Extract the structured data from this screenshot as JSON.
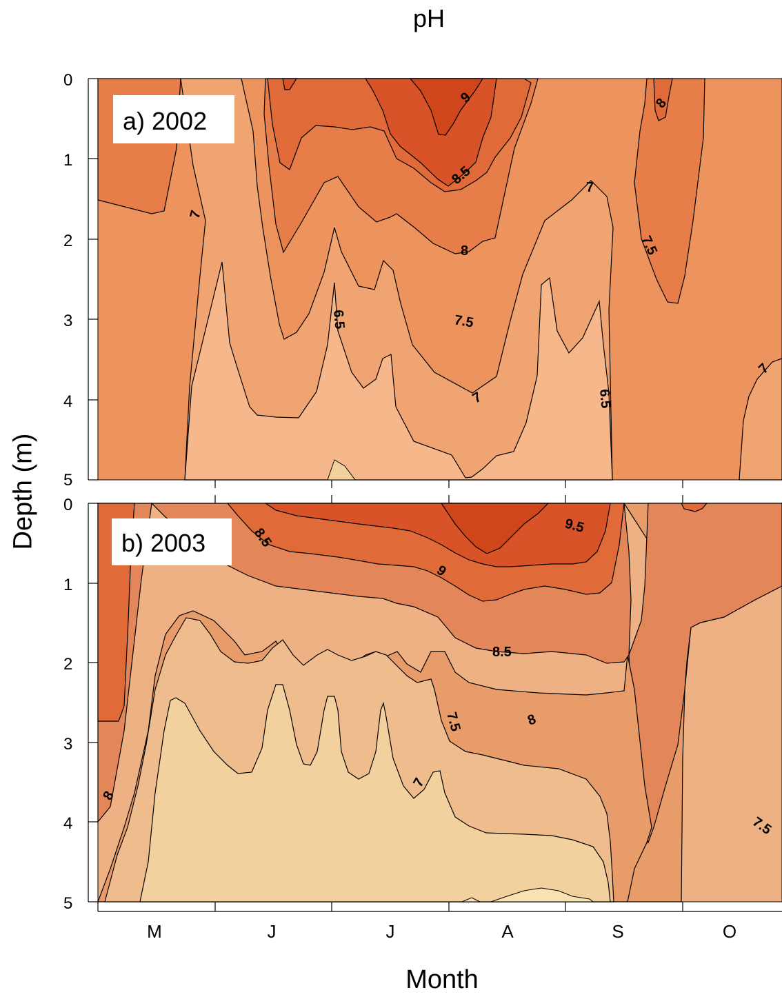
{
  "chart_data": {
    "type": "heatmap",
    "title": "pH",
    "xlabel": "Month",
    "ylabel": "Depth (m)",
    "x_categories": [
      "M",
      "J",
      "J",
      "A",
      "S",
      "O"
    ],
    "y_ticks": [
      0,
      1,
      2,
      3,
      4,
      5
    ],
    "ylim": [
      5,
      0
    ],
    "colors": {
      "6.0": "#f3d19f",
      "6.5": "#f6b88a",
      "7.0": "#f0a472",
      "7.5": "#ec935e",
      "8.0": "#e77e4a",
      "8.5": "#e16a39",
      "9.0": "#d85328",
      "9.5": "#cf461a"
    },
    "panels": [
      {
        "label": "a) 2002",
        "contour_labels": [
          "9",
          "8.5",
          "8",
          "7.5",
          "7",
          "6.5",
          "7",
          "8",
          "7.5",
          "6.5",
          "7"
        ],
        "background_level": "7.5",
        "regions": [
          {
            "level": "8.0",
            "points": [
              [
                0,
                0
              ],
              [
                120,
                0
              ],
              [
                118,
                13.5
              ],
              [
                100,
                15.5
              ],
              [
                0,
                15
              ]
            ]
          },
          {
            "level": "7.0",
            "points": [
              [
                132,
                0
              ],
              [
                225,
                0
              ],
              [
                210,
                20
              ],
              [
                188,
                33
              ],
              [
                178,
                48
              ],
              [
                175,
                60
              ],
              [
                178,
                70
              ],
              [
                185,
                80
              ],
              [
                160,
                100
              ],
              [
                140,
                100
              ],
              [
                150,
                75
              ],
              [
                155,
                50
              ],
              [
                145,
                25
              ]
            ]
          },
          {
            "level": "8.0",
            "points": [
              [
                225,
                0
              ],
              [
                385,
                0
              ],
              [
                372,
                40
              ],
              [
                355,
                75
              ],
              [
                335,
                84
              ],
              [
                325,
                88
              ],
              [
                300,
                98
              ],
              [
                275,
                103
              ],
              [
                250,
                116
              ],
              [
                230,
                111
              ],
              [
                213,
                98
              ],
              [
                195,
                80
              ],
              [
                188,
                50
              ],
              [
                196,
                20
              ]
            ]
          },
          {
            "level": "8.5",
            "points": [
              [
                245,
                0
              ],
              [
                360,
                0
              ],
              [
                345,
                25
              ],
              [
                325,
                45
              ],
              [
                300,
                65
              ],
              [
                275,
                78
              ],
              [
                240,
                70
              ],
              [
                215,
                60
              ],
              [
                205,
                25
              ]
            ]
          },
          {
            "level": "9.0",
            "points": [
              [
                285,
                0
              ],
              [
                340,
                0
              ],
              [
                320,
                30
              ],
              [
                300,
                45
              ],
              [
                280,
                30
              ]
            ]
          },
          {
            "level": "9.5",
            "points": [
              [
                310,
                0
              ],
              [
                345,
                0
              ],
              [
                320,
                20
              ],
              [
                305,
                15
              ]
            ]
          },
          {
            "level": "6.5",
            "points": [
              [
                150,
                100
              ],
              [
                160,
                120
              ],
              [
                175,
                135
              ],
              [
                195,
                140
              ],
              [
                230,
                140
              ],
              [
                255,
                140
              ],
              [
                270,
                135
              ],
              [
                275,
                150
              ],
              [
                265,
                180
              ],
              [
                240,
                200
              ],
              [
                215,
                190
              ],
              [
                205,
                165
              ],
              [
                210,
                132
              ],
              [
                195,
                118
              ],
              [
                175,
                110
              ],
              [
                160,
                105
              ]
            ]
          },
          {
            "level": "6.0",
            "points": [
              [
                185,
                150
              ],
              [
                195,
                160
              ],
              [
                200,
                175
              ],
              [
                210,
                188
              ],
              [
                220,
                178
              ],
              [
                210,
                158
              ],
              [
                198,
                148
              ]
            ]
          },
          {
            "level": "8.0",
            "points": [
              [
                465,
                0
              ],
              [
                485,
                0
              ],
              [
                478,
                20
              ],
              [
                470,
                45
              ],
              [
                462,
                55
              ],
              [
                455,
                40
              ],
              [
                458,
                15
              ]
            ]
          },
          {
            "level": "7.0",
            "points": [
              [
                575,
                90
              ],
              [
                580,
                100
              ],
              [
                568,
                100
              ],
              [
                560,
                92
              ]
            ]
          }
        ]
      },
      {
        "label": "b) 2003",
        "contour_labels": [
          "8.5",
          "9",
          "9.5",
          "8.5",
          "8",
          "7.5",
          "7",
          "8",
          "7.5"
        ],
        "background_level": "7.0",
        "regions": [
          {
            "level": "8.0",
            "points": [
              [
                0,
                0
              ],
              [
                45,
                0
              ],
              [
                35,
                60
              ],
              [
                25,
                100
              ],
              [
                0,
                100
              ]
            ]
          },
          {
            "level": "8.0",
            "points": [
              [
                455,
                0
              ],
              [
                575,
                0
              ],
              [
                575,
                38
              ],
              [
                540,
                50
              ],
              [
                510,
                55
              ],
              [
                485,
                70
              ],
              [
                470,
                100
              ],
              [
                455,
                100
              ],
              [
                450,
                60
              ]
            ]
          },
          {
            "level": "8.5",
            "points": [
              [
                55,
                0
              ],
              [
                470,
                0
              ],
              [
                460,
                60
              ],
              [
                440,
                80
              ],
              [
                400,
                85
              ],
              [
                360,
                83
              ],
              [
                330,
                75
              ],
              [
                300,
                68
              ],
              [
                250,
                60
              ],
              [
                200,
                60
              ],
              [
                150,
                55
              ],
              [
                100,
                45
              ],
              [
                75,
                30
              ],
              [
                60,
                15
              ]
            ]
          },
          {
            "level": "9.0",
            "points": [
              [
                130,
                0
              ],
              [
                450,
                0
              ],
              [
                430,
                40
              ],
              [
                400,
                50
              ],
              [
                350,
                45
              ],
              [
                300,
                35
              ],
              [
                250,
                25
              ],
              [
                200,
                18
              ],
              [
                150,
                10
              ]
            ]
          },
          {
            "level": "9.5",
            "points": [
              [
                250,
                0
              ],
              [
                430,
                0
              ],
              [
                410,
                25
              ],
              [
                380,
                28
              ],
              [
                340,
                20
              ],
              [
                300,
                15
              ],
              [
                270,
                8
              ]
            ]
          },
          {
            "level": "6.5",
            "points": [
              [
                55,
                100
              ],
              [
                60,
                55
              ],
              [
                70,
                35
              ],
              [
                100,
                40
              ],
              [
                140,
                30
              ],
              [
                200,
                40
              ],
              [
                250,
                55
              ],
              [
                300,
                70
              ],
              [
                340,
                85
              ],
              [
                370,
                90
              ],
              [
                390,
                100
              ]
            ]
          },
          {
            "level": "6.0",
            "points": [
              [
                65,
                100
              ],
              [
                70,
                40
              ],
              [
                90,
                45
              ],
              [
                100,
                55
              ],
              [
                140,
                50
              ],
              [
                200,
                65
              ],
              [
                260,
                75
              ],
              [
                300,
                85
              ],
              [
                340,
                95
              ],
              [
                355,
                100
              ]
            ]
          },
          {
            "level": "5.5",
            "points": [
              [
                330,
                100
              ],
              [
                340,
                97
              ],
              [
                360,
                96
              ],
              [
                375,
                100
              ]
            ]
          }
        ]
      }
    ]
  }
}
